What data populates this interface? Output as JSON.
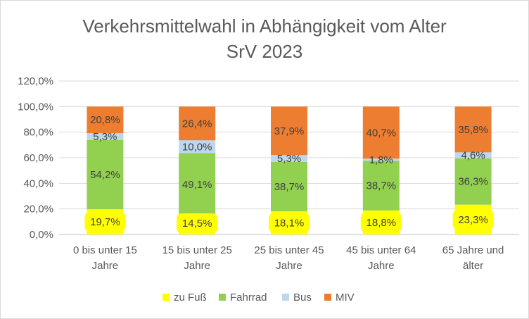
{
  "chart_data": {
    "type": "bar",
    "stacked": true,
    "title": "Verkehrsmittelwahl in Abhängigkeit vom Alter",
    "subtitle": "SrV 2023",
    "categories": [
      [
        "0 bis unter 15",
        "Jahre"
      ],
      [
        "15 bis unter 25",
        "Jahre"
      ],
      [
        "25 bis unter 45",
        "Jahre"
      ],
      [
        "45 bis unter 64",
        "Jahre"
      ],
      [
        "65 Jahre und",
        "älter"
      ]
    ],
    "series": [
      {
        "name": "zu Fuß",
        "color": "#ffff00",
        "values": [
          19.7,
          14.5,
          18.1,
          18.8,
          23.3
        ],
        "labels": [
          "19,7%",
          "14,5%",
          "18,1%",
          "18,8%",
          "23,3%"
        ]
      },
      {
        "name": "Fahrrad",
        "color": "#92d050",
        "values": [
          54.2,
          49.1,
          38.7,
          38.7,
          36.3
        ],
        "labels": [
          "54,2%",
          "49,1%",
          "38,7%",
          "38,7%",
          "36,3%"
        ]
      },
      {
        "name": "Bus",
        "color": "#bdd7ee",
        "values": [
          5.3,
          10.0,
          5.3,
          1.8,
          4.6
        ],
        "labels": [
          "5,3%",
          "10,0%",
          "5,3%",
          "1,8%",
          "4,6%"
        ]
      },
      {
        "name": "MIV",
        "color": "#ed7d31",
        "values": [
          20.8,
          26.4,
          37.9,
          40.7,
          35.8
        ],
        "labels": [
          "20,8%",
          "26,4%",
          "37,9%",
          "40,7%",
          "35,8%"
        ]
      }
    ],
    "ylim": [
      0,
      120
    ],
    "yticks": [
      0,
      20,
      40,
      60,
      80,
      100,
      120
    ],
    "ytick_labels": [
      "0,0%",
      "20,0%",
      "40,0%",
      "60,0%",
      "80,0%",
      "100,0%",
      "120,0%"
    ],
    "grid": true,
    "legend": "bottom",
    "xlabel": "",
    "ylabel": ""
  }
}
